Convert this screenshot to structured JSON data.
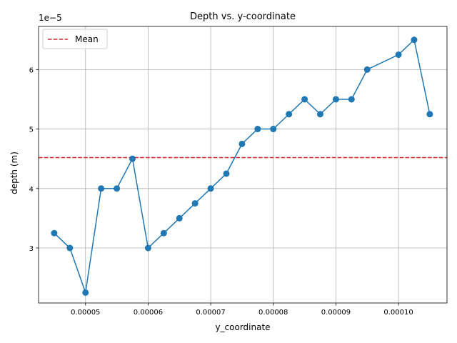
{
  "chart_data": {
    "type": "line",
    "title": "Depth vs. y-coordinate",
    "xlabel": "y_coordinate",
    "ylabel": "depth (m)",
    "y_offset_label": "1e−5",
    "xlim": [
      4.25e-05,
      0.00010775
    ],
    "ylim": [
      2.075e-05,
      6.725e-05
    ],
    "x_ticks": [
      5e-05,
      6e-05,
      7e-05,
      8e-05,
      9e-05,
      0.0001
    ],
    "x_tick_labels": [
      "0.00005",
      "0.00006",
      "0.00007",
      "0.00008",
      "0.00009",
      "0.00010"
    ],
    "y_ticks": [
      3e-05,
      4e-05,
      5e-05,
      6e-05
    ],
    "y_tick_labels": [
      "3",
      "4",
      "5",
      "6"
    ],
    "grid": true,
    "legend_position": "upper-left",
    "series": [
      {
        "color": "#1f77b4",
        "marker": "circle",
        "x": [
          4.5e-05,
          4.75e-05,
          5e-05,
          5.25e-05,
          5.5e-05,
          5.75e-05,
          6e-05,
          6.25e-05,
          6.5e-05,
          6.75e-05,
          7e-05,
          7.25e-05,
          7.5e-05,
          7.75e-05,
          8e-05,
          8.25e-05,
          8.5e-05,
          8.75e-05,
          9e-05,
          9.25e-05,
          9.5e-05,
          0.0001,
          0.0001025,
          0.000105
        ],
        "y": [
          3.25e-05,
          3e-05,
          2.25e-05,
          4e-05,
          4e-05,
          4.5e-05,
          3e-05,
          3.25e-05,
          3.5e-05,
          3.75e-05,
          4e-05,
          4.25e-05,
          4.75e-05,
          5e-05,
          5e-05,
          5.25e-05,
          5.5e-05,
          5.25e-05,
          5.5e-05,
          5.5e-05,
          6e-05,
          6.25e-05,
          6.5e-05,
          5.25e-05
        ]
      }
    ],
    "reference_line": {
      "name": "Mean",
      "y": 4.52e-05,
      "color": "#d62728",
      "style": "dashed"
    }
  }
}
